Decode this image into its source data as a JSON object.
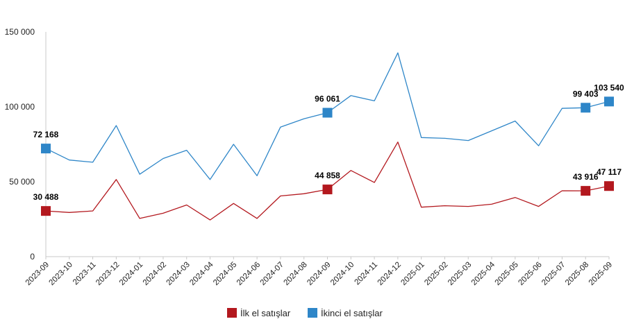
{
  "chart_data": {
    "type": "line",
    "title": "",
    "xlabel": "",
    "ylabel": "",
    "ylim": [
      0,
      150000
    ],
    "yticks": [
      {
        "value": 0,
        "label": "0"
      },
      {
        "value": 50000,
        "label": "50 000"
      },
      {
        "value": 100000,
        "label": "100 000"
      },
      {
        "value": 150000,
        "label": "150 000"
      }
    ],
    "grid": false,
    "legend_position": "bottom",
    "categories": [
      "2023-09",
      "2023-10",
      "2023-11",
      "2023-12",
      "2024-01",
      "2024-02",
      "2024-03",
      "2024-04",
      "2024-05",
      "2024-06",
      "2024-07",
      "2024-08",
      "2024-09",
      "2024-10",
      "2024-11",
      "2024-12",
      "2025-01",
      "2025-02",
      "2025-03",
      "2025-04",
      "2025-05",
      "2025-06",
      "2025-07",
      "2025-08",
      "2025-09"
    ],
    "series": [
      {
        "name": "İkinci el satışlar",
        "color": "#2E86C8",
        "values": [
          72168,
          64500,
          63000,
          87500,
          55000,
          65500,
          71000,
          51500,
          75000,
          54000,
          86500,
          92000,
          96061,
          107500,
          104000,
          136000,
          79500,
          79000,
          77500,
          84000,
          90500,
          74000,
          99000,
          99403,
          103540
        ],
        "markers": [
          0,
          12,
          23,
          24
        ],
        "labels": [
          {
            "index": 0,
            "text": "72 168"
          },
          {
            "index": 12,
            "text": "96 061"
          },
          {
            "index": 23,
            "text": "99 403"
          },
          {
            "index": 24,
            "text": "103 540"
          }
        ]
      },
      {
        "name": "İlk el satışlar",
        "color": "#B3181E",
        "values": [
          30488,
          29500,
          30500,
          51500,
          25500,
          29000,
          34500,
          24500,
          35500,
          25500,
          40500,
          42000,
          44858,
          57500,
          49500,
          76500,
          33000,
          34000,
          33500,
          35000,
          39500,
          33500,
          44000,
          43916,
          47117
        ],
        "markers": [
          0,
          12,
          23,
          24
        ],
        "labels": [
          {
            "index": 0,
            "text": "30 488"
          },
          {
            "index": 12,
            "text": "44 858"
          },
          {
            "index": 23,
            "text": "43 916"
          },
          {
            "index": 24,
            "text": "47 117"
          }
        ]
      }
    ],
    "legend": [
      {
        "name": "İlk el satışlar",
        "color": "#B3181E"
      },
      {
        "name": "İkinci el satışlar",
        "color": "#2E86C8"
      }
    ]
  }
}
